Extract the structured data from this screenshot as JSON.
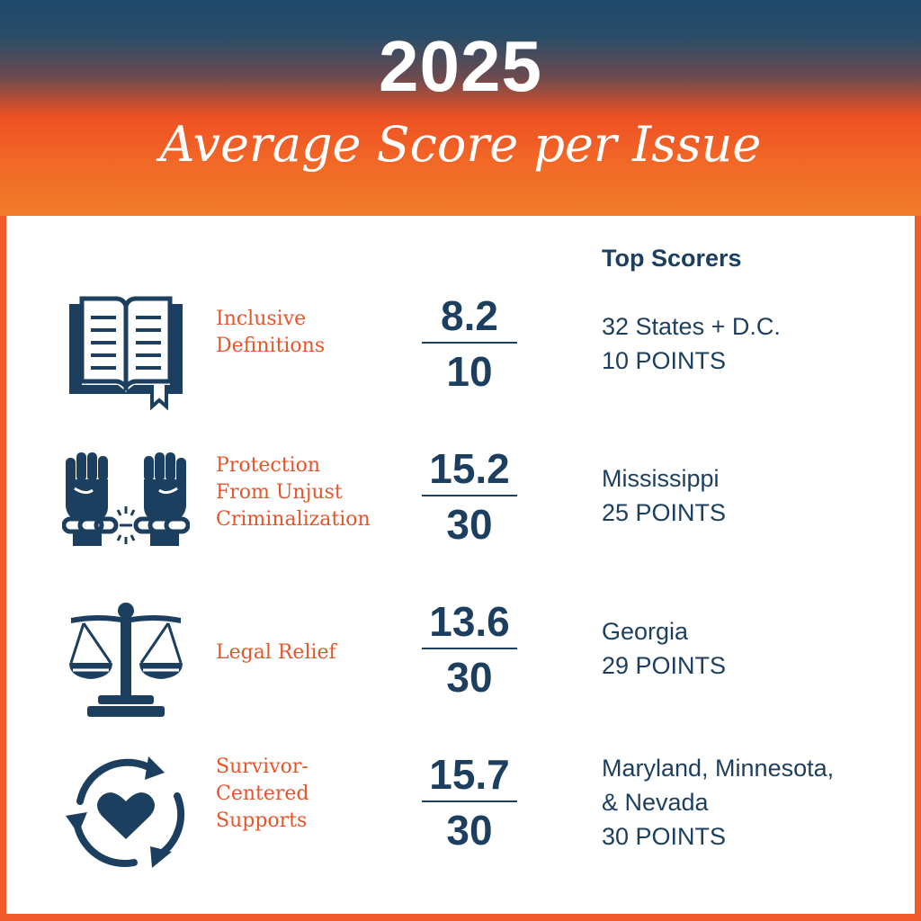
{
  "header": {
    "year": "2025",
    "title": "Average Score per Issue"
  },
  "top_scorers_heading": "Top Scorers",
  "colors": {
    "navy": "#1c3f5f",
    "orange": "#e8542a",
    "header_top": "#1f4a6b",
    "header_bottom": "#f07c29"
  },
  "issues": [
    {
      "icon": "open-book-icon",
      "label_lines": [
        "Inclusive",
        "Definitions"
      ],
      "score": "8.2",
      "max": "10",
      "scorer_lines": [
        "32 States + D.C.",
        "10 POINTS"
      ]
    },
    {
      "icon": "broken-chain-fists-icon",
      "label_lines": [
        "Protection",
        "From Unjust",
        "Criminalization"
      ],
      "score": "15.2",
      "max": "30",
      "scorer_lines": [
        "Mississippi",
        "25 POINTS"
      ]
    },
    {
      "icon": "scales-of-justice-icon",
      "label_lines": [
        "Legal Relief"
      ],
      "score": "13.6",
      "max": "30",
      "scorer_lines": [
        "Georgia",
        "29 POINTS"
      ]
    },
    {
      "icon": "heart-cycle-icon",
      "label_lines": [
        "Survivor-",
        "Centered",
        "Supports"
      ],
      "score": "15.7",
      "max": "30",
      "scorer_lines": [
        "Maryland, Minnesota,",
        "& Nevada",
        "30 POINTS"
      ]
    }
  ]
}
